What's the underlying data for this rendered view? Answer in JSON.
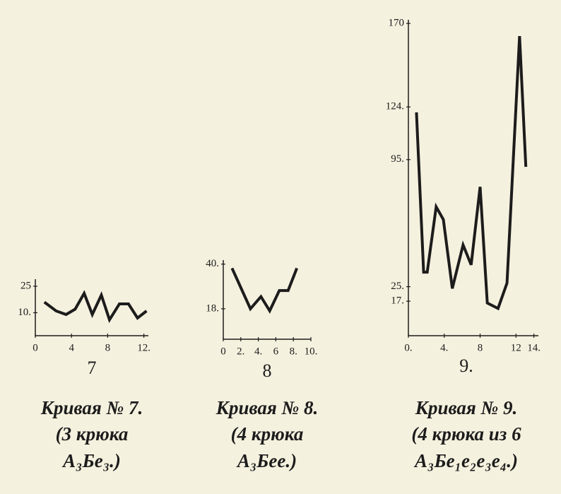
{
  "chart_data": [
    {
      "type": "line",
      "caption": "7",
      "title": "Кривая № 7.",
      "notes": [
        "(3 крюка",
        "A₃Бe₃.)"
      ],
      "x": [
        1,
        2.3,
        3.4,
        4.4,
        5.4,
        6.3,
        7.3,
        8.2,
        9.3,
        10.3,
        11.3,
        12.3
      ],
      "values": [
        16,
        11,
        9,
        12,
        21,
        9,
        20,
        6,
        15,
        15,
        7,
        11
      ],
      "xlim": [
        0,
        12.5
      ],
      "ylim": [
        -3,
        29
      ],
      "xticks": [
        0,
        4,
        8,
        {
          "value": 12,
          "label": "12."
        }
      ],
      "yticks": [
        25,
        {
          "value": 10,
          "label": "10."
        }
      ],
      "color": "#1c1c1c"
    },
    {
      "type": "line",
      "caption": "8",
      "title": "Кривая № 8.",
      "notes": [
        "(4 крюка",
        "A₃Бee.)"
      ],
      "x": [
        1,
        3.1,
        4.3,
        5.3,
        6.4,
        7.4,
        8.4
      ],
      "values": [
        38,
        18,
        24,
        17,
        27,
        27,
        38
      ],
      "xlim": [
        0,
        10
      ],
      "ylim": [
        3,
        42
      ],
      "xticks": [
        0,
        {
          "value": 2,
          "label": "2."
        },
        {
          "value": 4,
          "label": "4."
        },
        6,
        {
          "value": 8,
          "label": "8."
        },
        {
          "value": 10,
          "label": "10."
        }
      ],
      "yticks": [
        {
          "value": 40,
          "label": "40."
        },
        {
          "value": 18,
          "label": "18."
        }
      ],
      "color": "#1c1c1c"
    },
    {
      "type": "line",
      "caption": "9.",
      "title": "Кривая № 9.",
      "notes": [
        "(4 крюка из 6",
        "A₃Бe₁e₂e₃e₄.)"
      ],
      "x": [
        0.9,
        1.7,
        2.1,
        3.1,
        3.9,
        4.9,
        6.1,
        7.0,
        8.0,
        8.8,
        10.0,
        11.0,
        12.4,
        13.1
      ],
      "values": [
        121,
        33,
        33,
        69,
        62,
        24,
        48,
        37,
        80,
        16,
        13,
        27,
        163,
        91
      ],
      "xlim": [
        0,
        14.5
      ],
      "ylim": [
        -2,
        172
      ],
      "xticks": [
        {
          "value": 0,
          "label": "0."
        },
        {
          "value": 4,
          "label": "4."
        },
        8,
        12,
        {
          "value": 14,
          "label": "14."
        }
      ],
      "yticks": [
        170,
        {
          "value": 124,
          "label": "124."
        },
        {
          "value": 95,
          "label": "95."
        },
        {
          "value": 25,
          "label": "25."
        },
        {
          "value": 17,
          "label": "17."
        }
      ],
      "color": "#1c1c1c"
    }
  ]
}
